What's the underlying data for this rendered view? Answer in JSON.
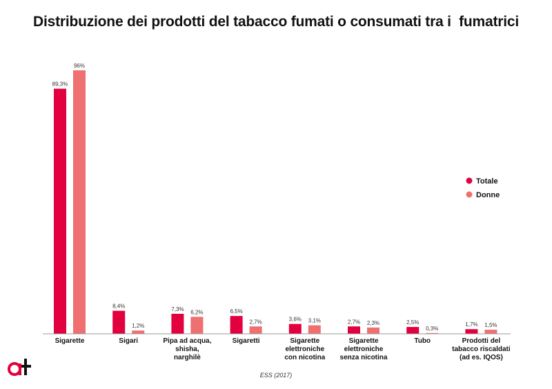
{
  "title": "Distribuzione dei prodotti del tabacco fumati o consumati tra i  fumatrici",
  "source": "ESS (2017)",
  "logo_text": "at",
  "colors": {
    "totale": "#E2003F",
    "donne": "#EF7071",
    "axis": "#999999"
  },
  "chart_data": {
    "type": "bar",
    "title": "Distribuzione dei prodotti del tabacco fumati o consumati tra i  fumatrici",
    "categories": [
      [
        "Sigarette"
      ],
      [
        "Sigari"
      ],
      [
        "Pipa ad acqua,",
        "shisha,",
        "narghilè"
      ],
      [
        "Sigaretti"
      ],
      [
        "Sigarette",
        "elettroniche",
        "con nicotina"
      ],
      [
        "Sigarette",
        "elettroniche",
        "senza nicotina"
      ],
      [
        "Tubo"
      ],
      [
        "Prodotti del",
        "tabacco riscaldati",
        "(ad es. IQOS)"
      ]
    ],
    "series": [
      {
        "name": "Totale",
        "values": [
          89.3,
          8.4,
          7.3,
          6.5,
          3.6,
          2.7,
          2.5,
          1.7
        ],
        "labels": [
          "89,3%",
          "8,4%",
          "7,3%",
          "6,5%",
          "3,6%",
          "2,7%",
          "2,5%",
          "1,7%"
        ]
      },
      {
        "name": "Donne",
        "values": [
          96,
          1.2,
          6.2,
          2.7,
          3.1,
          2.3,
          0.3,
          1.5
        ],
        "labels": [
          "96%",
          "1,2%",
          "6,2%",
          "2,7%",
          "3,1%",
          "2,3%",
          "0,3%",
          "1,5%"
        ]
      }
    ],
    "ylim": [
      0,
      100
    ],
    "legend": "right"
  }
}
